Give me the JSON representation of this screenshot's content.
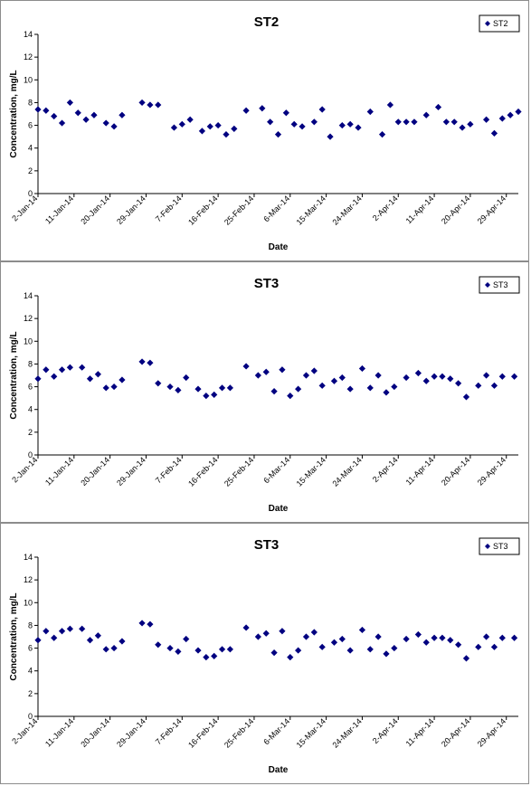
{
  "chart_data": [
    {
      "type": "scatter",
      "title": "ST2",
      "xlabel": "Date",
      "ylabel": "Concentration, mg/L",
      "ylim": [
        0,
        14
      ],
      "yticks": [
        "0",
        "2",
        "4",
        "6",
        "8",
        "10",
        "12",
        "14"
      ],
      "xlim": [
        "2-Jan-14",
        "2-May-14"
      ],
      "xticks": [
        "2-Jan-14",
        "11-Jan-14",
        "20-Jan-14",
        "29-Jan-14",
        "7-Feb-14",
        "16-Feb-14",
        "25-Feb-14",
        "6-Mar-14",
        "15-Mar-14",
        "24-Mar-14",
        "2-Apr-14",
        "11-Apr-14",
        "20-Apr-14",
        "29-Apr-14"
      ],
      "legend_position": "top-right",
      "marker_color": "#000080",
      "grid": false,
      "series": [
        {
          "name": "ST2",
          "x": [
            "2-Jan-14",
            "4-Jan-14",
            "6-Jan-14",
            "8-Jan-14",
            "10-Jan-14",
            "12-Jan-14",
            "14-Jan-14",
            "16-Jan-14",
            "19-Jan-14",
            "21-Jan-14",
            "23-Jan-14",
            "28-Jan-14",
            "30-Jan-14",
            "1-Feb-14",
            "5-Feb-14",
            "7-Feb-14",
            "9-Feb-14",
            "12-Feb-14",
            "14-Feb-14",
            "16-Feb-14",
            "18-Feb-14",
            "20-Feb-14",
            "23-Feb-14",
            "27-Feb-14",
            "29-Feb-14",
            "3-Mar-14",
            "5-Mar-14",
            "7-Mar-14",
            "9-Mar-14",
            "12-Mar-14",
            "14-Mar-14",
            "16-Mar-14",
            "19-Mar-14",
            "21-Mar-14",
            "23-Mar-14",
            "26-Mar-14",
            "29-Mar-14",
            "31-Mar-14",
            "2-Apr-14",
            "4-Apr-14",
            "6-Apr-14",
            "9-Apr-14",
            "12-Apr-14",
            "14-Apr-14",
            "16-Apr-14",
            "18-Apr-14",
            "20-Apr-14",
            "24-Apr-14",
            "26-Apr-14",
            "28-Apr-14",
            "30-Apr-14",
            "2-May-14"
          ],
          "y": [
            7.4,
            7.3,
            6.8,
            6.2,
            8.0,
            7.1,
            6.5,
            6.9,
            6.2,
            5.9,
            6.9,
            8.0,
            7.8,
            7.8,
            5.8,
            6.1,
            6.5,
            5.5,
            5.9,
            6.0,
            5.2,
            5.7,
            7.3,
            7.5,
            6.3,
            5.2,
            7.1,
            6.1,
            5.9,
            6.3,
            7.4,
            5.0,
            6.0,
            6.1,
            5.8,
            7.2,
            5.2,
            7.8,
            6.3,
            6.3,
            6.3,
            6.9,
            7.6,
            6.3,
            6.3,
            5.8,
            6.1,
            6.5,
            5.3,
            6.6,
            6.9,
            7.2
          ]
        }
      ]
    },
    {
      "type": "scatter",
      "title": "ST3",
      "xlabel": "Date",
      "ylabel": "Concentration, mg/L",
      "ylim": [
        0,
        14
      ],
      "yticks": [
        "0",
        "2",
        "4",
        "6",
        "8",
        "10",
        "12",
        "14"
      ],
      "xlim": [
        "2-Jan-14",
        "2-May-14"
      ],
      "xticks": [
        "2-Jan-14",
        "11-Jan-14",
        "20-Jan-14",
        "29-Jan-14",
        "7-Feb-14",
        "16-Feb-14",
        "25-Feb-14",
        "6-Mar-14",
        "15-Mar-14",
        "24-Mar-14",
        "2-Apr-14",
        "11-Apr-14",
        "20-Apr-14",
        "29-Apr-14"
      ],
      "legend_position": "top-right",
      "marker_color": "#000080",
      "grid": false,
      "series": [
        {
          "name": "ST3",
          "x": [
            "2-Jan-14",
            "4-Jan-14",
            "6-Jan-14",
            "8-Jan-14",
            "10-Jan-14",
            "13-Jan-14",
            "15-Jan-14",
            "17-Jan-14",
            "19-Jan-14",
            "21-Jan-14",
            "23-Jan-14",
            "28-Jan-14",
            "30-Jan-14",
            "1-Feb-14",
            "4-Feb-14",
            "6-Feb-14",
            "8-Feb-14",
            "11-Feb-14",
            "13-Feb-14",
            "15-Feb-14",
            "17-Feb-14",
            "19-Feb-14",
            "23-Feb-14",
            "26-Feb-14",
            "28-Feb-14",
            "2-Mar-14",
            "4-Mar-14",
            "6-Mar-14",
            "8-Mar-14",
            "10-Mar-14",
            "12-Mar-14",
            "14-Mar-14",
            "17-Mar-14",
            "19-Mar-14",
            "21-Mar-14",
            "24-Mar-14",
            "26-Mar-14",
            "28-Mar-14",
            "30-Mar-14",
            "1-Apr-14",
            "4-Apr-14",
            "7-Apr-14",
            "9-Apr-14",
            "11-Apr-14",
            "13-Apr-14",
            "15-Apr-14",
            "17-Apr-14",
            "19-Apr-14",
            "22-Apr-14",
            "24-Apr-14",
            "26-Apr-14",
            "28-Apr-14",
            "1-May-14"
          ],
          "y": [
            6.7,
            7.5,
            6.9,
            7.5,
            7.7,
            7.7,
            6.7,
            7.1,
            5.9,
            6.0,
            6.6,
            8.2,
            8.1,
            6.3,
            6.0,
            5.7,
            6.8,
            5.8,
            5.2,
            5.3,
            5.9,
            5.9,
            7.8,
            7.0,
            7.3,
            5.6,
            7.5,
            5.2,
            5.8,
            7.0,
            7.4,
            6.1,
            6.5,
            6.8,
            5.8,
            7.6,
            5.9,
            7.0,
            5.5,
            6.0,
            6.8,
            7.2,
            6.5,
            6.9,
            6.9,
            6.7,
            6.3,
            5.1,
            6.1,
            7.0,
            6.1,
            6.9,
            6.9
          ]
        }
      ]
    },
    {
      "type": "scatter",
      "title": "ST3",
      "xlabel": "Date",
      "ylabel": "Concentration, mg/L",
      "ylim": [
        0,
        14
      ],
      "yticks": [
        "0",
        "2",
        "4",
        "6",
        "8",
        "10",
        "12",
        "14"
      ],
      "xlim": [
        "2-Jan-14",
        "2-May-14"
      ],
      "xticks": [
        "2-Jan-14",
        "11-Jan-14",
        "20-Jan-14",
        "29-Jan-14",
        "7-Feb-14",
        "16-Feb-14",
        "25-Feb-14",
        "6-Mar-14",
        "15-Mar-14",
        "24-Mar-14",
        "2-Apr-14",
        "11-Apr-14",
        "20-Apr-14",
        "29-Apr-14"
      ],
      "legend_position": "top-right",
      "marker_color": "#000080",
      "grid": false,
      "series": [
        {
          "name": "ST3",
          "x": [
            "2-Jan-14",
            "4-Jan-14",
            "6-Jan-14",
            "8-Jan-14",
            "10-Jan-14",
            "13-Jan-14",
            "15-Jan-14",
            "17-Jan-14",
            "19-Jan-14",
            "21-Jan-14",
            "23-Jan-14",
            "28-Jan-14",
            "30-Jan-14",
            "1-Feb-14",
            "4-Feb-14",
            "6-Feb-14",
            "8-Feb-14",
            "11-Feb-14",
            "13-Feb-14",
            "15-Feb-14",
            "17-Feb-14",
            "19-Feb-14",
            "23-Feb-14",
            "26-Feb-14",
            "28-Feb-14",
            "2-Mar-14",
            "4-Mar-14",
            "6-Mar-14",
            "8-Mar-14",
            "10-Mar-14",
            "12-Mar-14",
            "14-Mar-14",
            "17-Mar-14",
            "19-Mar-14",
            "21-Mar-14",
            "24-Mar-14",
            "26-Mar-14",
            "28-Mar-14",
            "30-Mar-14",
            "1-Apr-14",
            "4-Apr-14",
            "7-Apr-14",
            "9-Apr-14",
            "11-Apr-14",
            "13-Apr-14",
            "15-Apr-14",
            "17-Apr-14",
            "19-Apr-14",
            "22-Apr-14",
            "24-Apr-14",
            "26-Apr-14",
            "28-Apr-14",
            "1-May-14"
          ],
          "y": [
            6.7,
            7.5,
            6.9,
            7.5,
            7.7,
            7.7,
            6.7,
            7.1,
            5.9,
            6.0,
            6.6,
            8.2,
            8.1,
            6.3,
            6.0,
            5.7,
            6.8,
            5.8,
            5.2,
            5.3,
            5.9,
            5.9,
            7.8,
            7.0,
            7.3,
            5.6,
            7.5,
            5.2,
            5.8,
            7.0,
            7.4,
            6.1,
            6.5,
            6.8,
            5.8,
            7.6,
            5.9,
            7.0,
            5.5,
            6.0,
            6.8,
            7.2,
            6.5,
            6.9,
            6.9,
            6.7,
            6.3,
            5.1,
            6.1,
            7.0,
            6.1,
            6.9,
            6.9
          ]
        }
      ]
    }
  ]
}
